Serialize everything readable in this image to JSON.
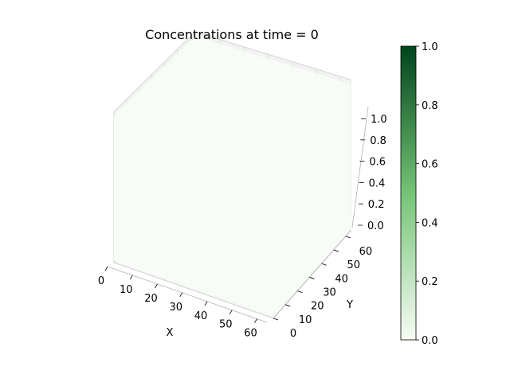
{
  "window": {
    "title": "Concentrations at time = 0"
  },
  "colors": {
    "pane": "#f2f2f2",
    "pane_edge": "#d9d9d9",
    "surface": "#f7fcf5",
    "axis_line": "#000000",
    "grid": "#b0b0b0",
    "colormap_start": "#f7fcf5",
    "colormap_mid": "#74c476",
    "colormap_end": "#00441b"
  },
  "chart_data": {
    "type": "surface",
    "title": "Concentrations at time = 0",
    "xlabel": "X",
    "ylabel": "Y",
    "zlabel": "",
    "xlim": [
      0,
      64
    ],
    "ylim": [
      0,
      64
    ],
    "zlim": [
      0,
      1
    ],
    "xticks": [
      0,
      10,
      20,
      30,
      40,
      50,
      60
    ],
    "yticks": [
      0,
      10,
      20,
      30,
      40,
      50,
      60
    ],
    "zticks": [
      0.0,
      0.2,
      0.4,
      0.6,
      0.8,
      1.0
    ],
    "x_tick_labels": [
      "0",
      "10",
      "20",
      "30",
      "40",
      "50",
      "60"
    ],
    "y_tick_labels": [
      "0",
      "10",
      "20",
      "30",
      "40",
      "50",
      "60"
    ],
    "z_tick_labels": [
      "0.0",
      "0.2",
      "0.4",
      "0.6",
      "0.8",
      "1.0"
    ],
    "surface": {
      "value": 0.0,
      "description": "uniform concentration across the grid"
    },
    "grid": true,
    "colorbar": {
      "colormap": "Greens",
      "range": [
        0,
        1
      ],
      "ticks": [
        0.0,
        0.2,
        0.4,
        0.6,
        0.8,
        1.0
      ],
      "tick_labels": [
        "0.0",
        "0.2",
        "0.4",
        "0.6",
        "0.8",
        "1.0"
      ],
      "placement": "right"
    }
  }
}
